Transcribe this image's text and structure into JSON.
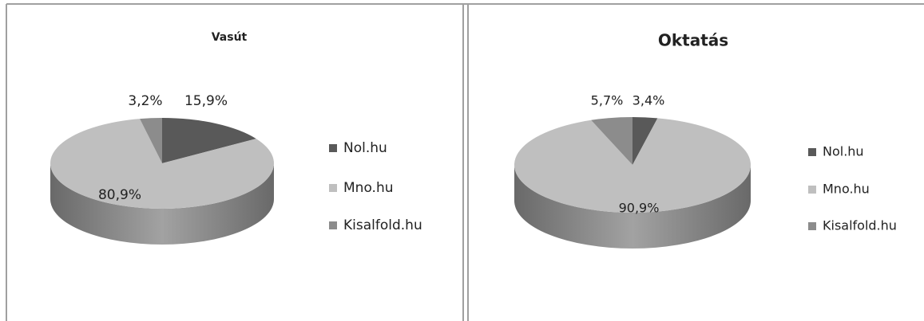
{
  "chart_data": [
    {
      "type": "pie",
      "title": "Vasút",
      "categories": [
        "Nol.hu",
        "Mno.hu",
        "Kisalfold.hu"
      ],
      "values": [
        15.9,
        80.9,
        3.2
      ],
      "value_labels": [
        "15,9%",
        "80,9%",
        "3,2%"
      ],
      "colors": [
        "#595959",
        "#bfbfbf",
        "#8c8c8c"
      ]
    },
    {
      "type": "pie",
      "title": "Oktatás",
      "categories": [
        "Nol.hu",
        "Mno.hu",
        "Kisalfold.hu"
      ],
      "values": [
        3.4,
        90.9,
        5.7
      ],
      "value_labels": [
        "3,4%",
        "90,9%",
        "5,7%"
      ],
      "colors": [
        "#595959",
        "#bfbfbf",
        "#8c8c8c"
      ]
    }
  ]
}
